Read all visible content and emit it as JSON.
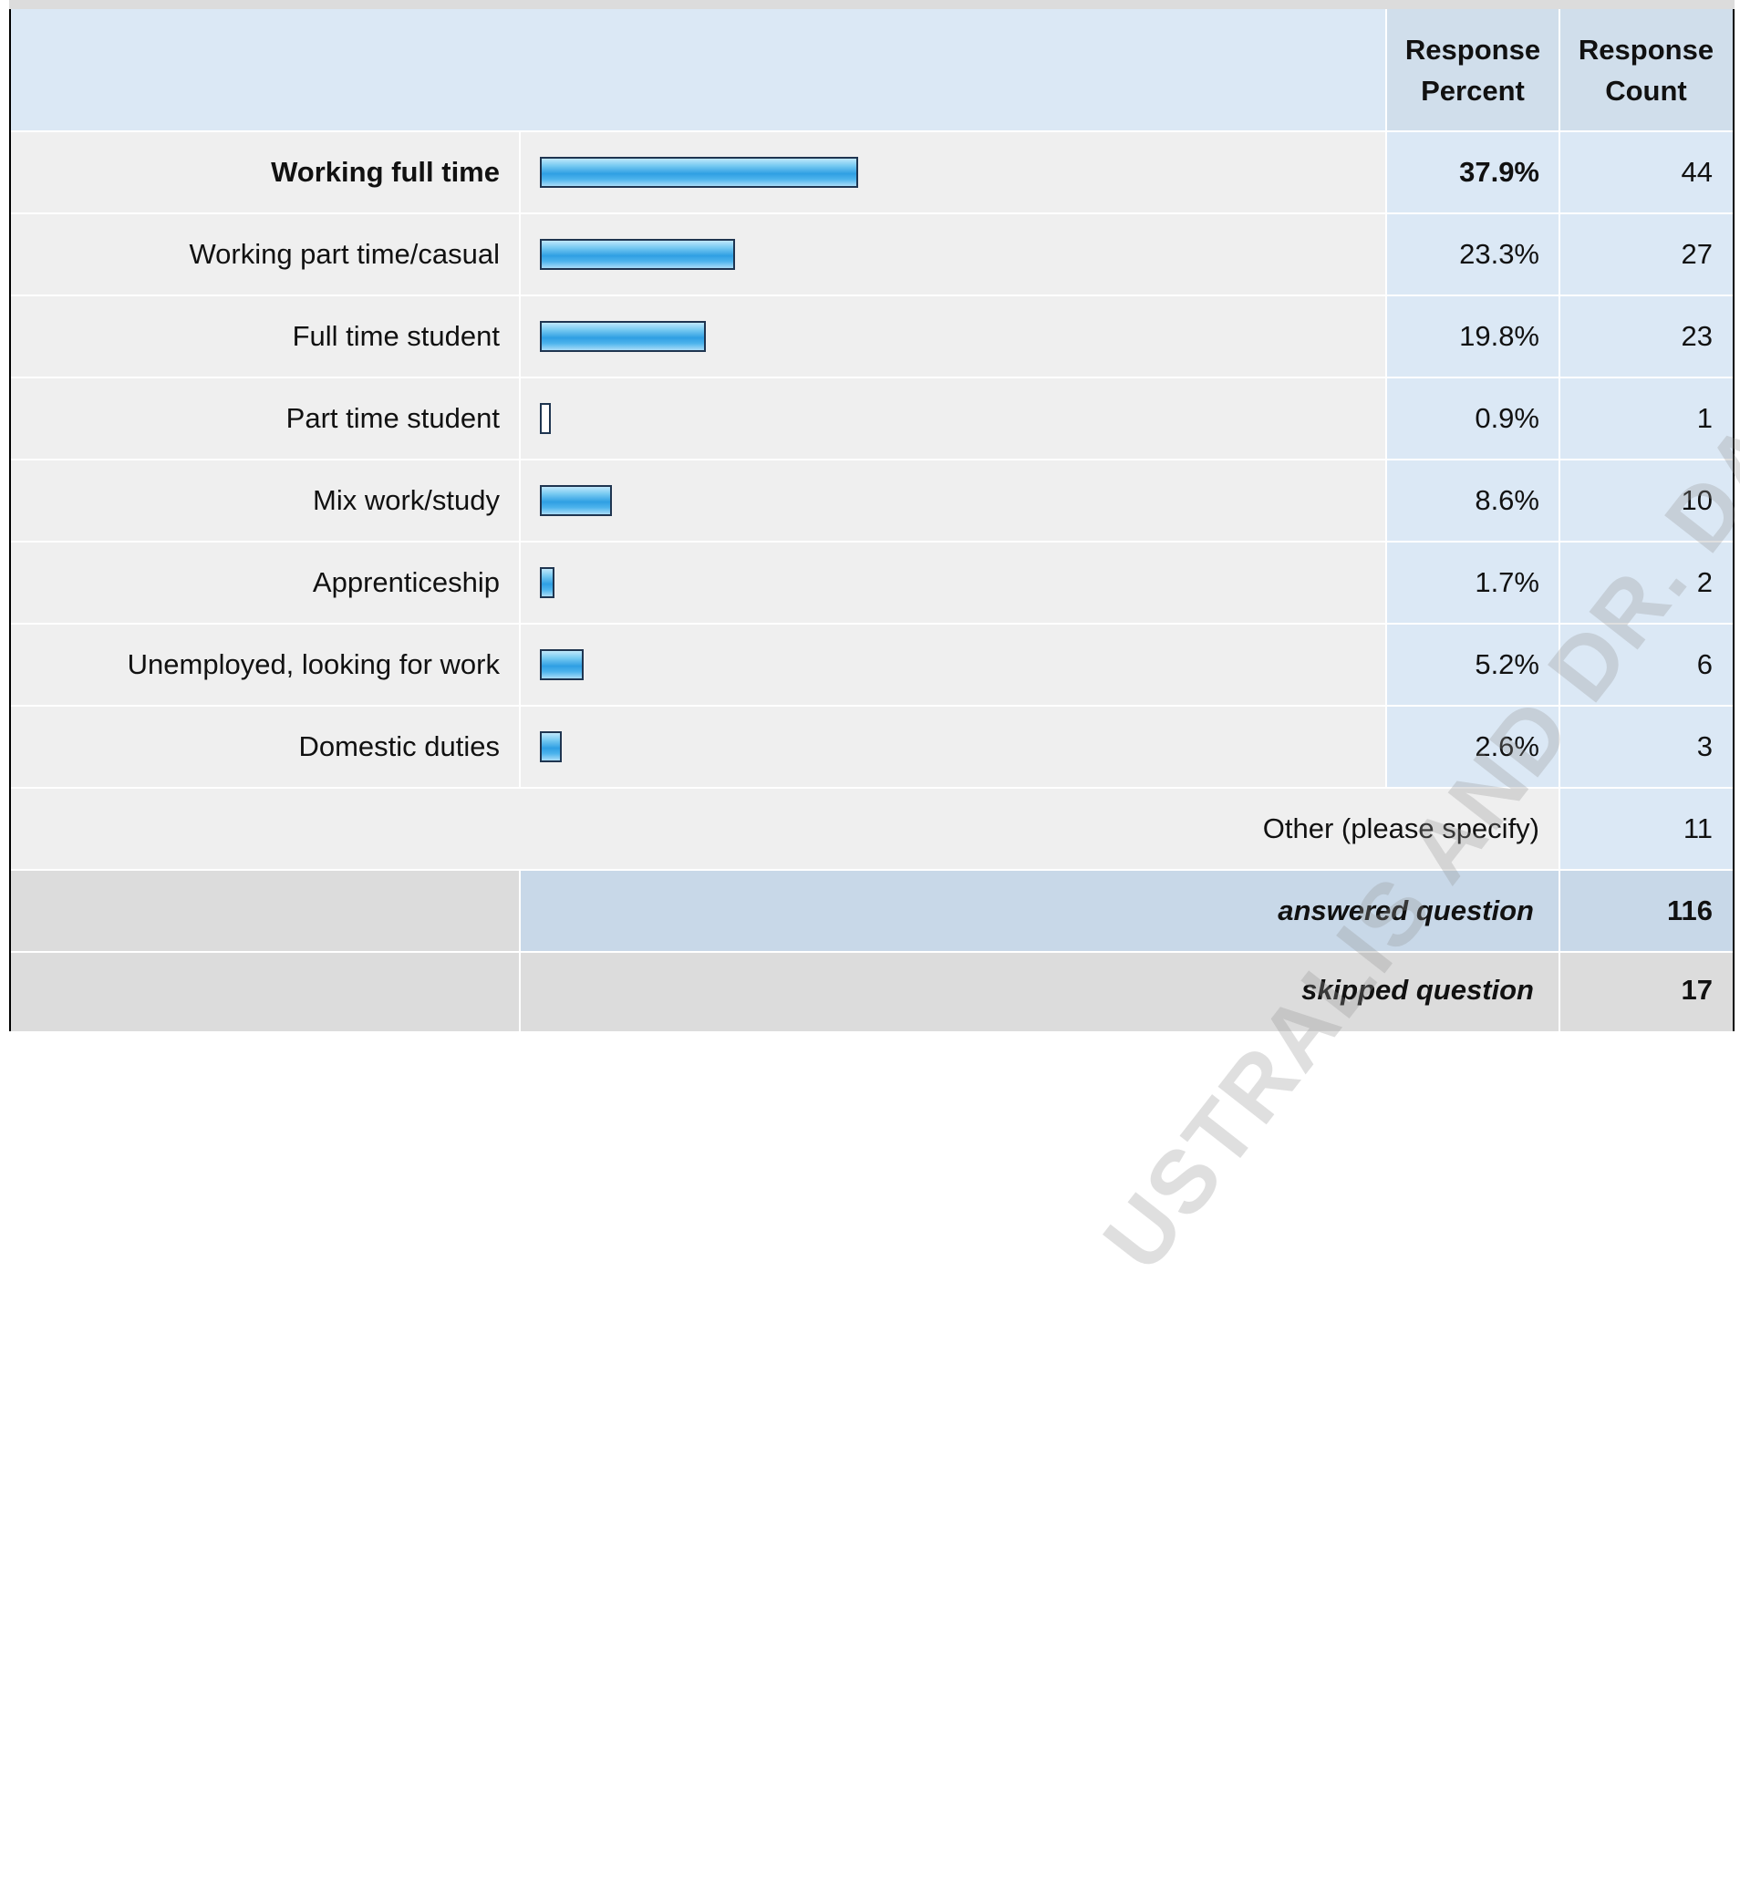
{
  "chart_data": {
    "type": "bar",
    "header": {
      "percent": "Response Percent",
      "count": "Response Count"
    },
    "rows": [
      {
        "label": "Working full time",
        "percent": 37.9,
        "percent_text": "37.9%",
        "count": "44",
        "bold": true
      },
      {
        "label": "Working part time/casual",
        "percent": 23.3,
        "percent_text": "23.3%",
        "count": "27"
      },
      {
        "label": "Full time student",
        "percent": 19.8,
        "percent_text": "19.8%",
        "count": "23"
      },
      {
        "label": "Part time student",
        "percent": 0.9,
        "percent_text": "0.9%",
        "count": "1"
      },
      {
        "label": "Mix work/study",
        "percent": 8.6,
        "percent_text": "8.6%",
        "count": "10"
      },
      {
        "label": "Apprenticeship",
        "percent": 1.7,
        "percent_text": "1.7%",
        "count": "2"
      },
      {
        "label": "Unemployed, looking for work",
        "percent": 5.2,
        "percent_text": "5.2%",
        "count": "6"
      },
      {
        "label": "Domestic duties",
        "percent": 2.6,
        "percent_text": "2.6%",
        "count": "3"
      }
    ],
    "other": {
      "label": "Other (please specify)",
      "count": "11"
    },
    "answered": {
      "label": "answered question",
      "count": "116"
    },
    "skipped": {
      "label": "skipped question",
      "count": "17"
    },
    "xlim": [
      0,
      100
    ]
  },
  "watermark": "USTRALIS AND DR. DAVID CALDICOTT",
  "colors": {
    "header_bg": "#dbe8f5",
    "row_bg": "#efefef",
    "percent_col_bg": "#dbe8f5",
    "footer_label_bg": "#c8d8e8",
    "footer_left_bg": "#dcdcdc",
    "bar_border": "#1f3550",
    "bar_fill": "#2f9fe3"
  }
}
